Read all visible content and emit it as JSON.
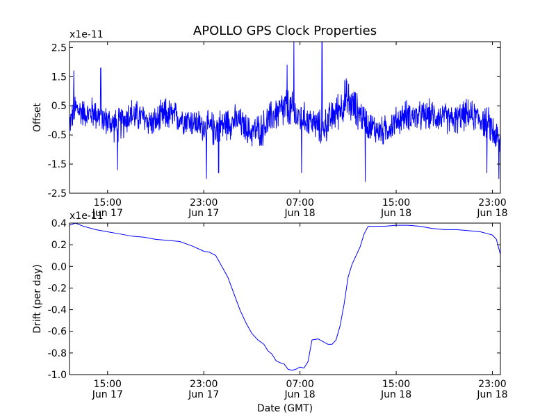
{
  "figure": {
    "title": "APOLLO GPS Clock Properties",
    "line_color": "#0000ff"
  },
  "chart_data": [
    {
      "type": "line",
      "name": "offset",
      "title": "APOLLO GPS Clock Properties",
      "ylabel": "Offset",
      "xlabel": "",
      "y_multiplier": "x1e-11",
      "xlim": [
        "2013-06-17 11:50",
        "2013-06-18 23:40"
      ],
      "ylim": [
        -2.5,
        2.7
      ],
      "y_ticks": [
        2.5,
        1.5,
        0.5,
        -0.5,
        -1.5,
        -2.5
      ],
      "y_tick_labels": [
        "2.5",
        "1.5",
        "0.5",
        "-0.5",
        "-1.5",
        "-2.5"
      ],
      "x_ticks": [
        "2013-06-17 15:00",
        "2013-06-17 23:00",
        "2013-06-18 07:00",
        "2013-06-18 15:00",
        "2013-06-18 23:00"
      ],
      "x_tick_labels": [
        [
          "15:00",
          "Jun 17"
        ],
        [
          "23:00",
          "Jun 17"
        ],
        [
          "07:00",
          "Jun 18"
        ],
        [
          "15:00",
          "Jun 18"
        ],
        [
          "23:00",
          "Jun 18"
        ]
      ],
      "grid": false,
      "envelope": {
        "hours": [
          0,
          0.5,
          1,
          1.5,
          2,
          3,
          4,
          5,
          6,
          7,
          8,
          9,
          10,
          11,
          12,
          13,
          14,
          15,
          16,
          17,
          18,
          18.5,
          19,
          20,
          21,
          22,
          23,
          24,
          25,
          26,
          27,
          28,
          29,
          30,
          31,
          32,
          33,
          34,
          35,
          35.83
        ],
        "center": [
          -0.1,
          0.4,
          0.3,
          0.2,
          0.3,
          0.0,
          -0.2,
          0.2,
          0.1,
          -0.1,
          0.2,
          0.1,
          0.0,
          -0.2,
          -0.3,
          -0.1,
          0.0,
          -0.4,
          -0.3,
          0.2,
          0.4,
          0.3,
          0.1,
          0.0,
          -0.3,
          0.2,
          0.7,
          0.3,
          -0.2,
          -0.4,
          -0.1,
          0.2,
          0.1,
          0.2,
          0.1,
          0.0,
          0.2,
          0.1,
          -0.2,
          -0.8
        ],
        "amplitude": [
          0.5,
          0.7,
          0.6,
          0.5,
          0.7,
          0.6,
          0.7,
          0.7,
          0.6,
          0.6,
          0.7,
          0.6,
          0.6,
          0.6,
          0.7,
          0.7,
          0.6,
          0.6,
          0.7,
          0.7,
          0.9,
          0.8,
          0.7,
          0.6,
          0.7,
          0.7,
          0.9,
          0.7,
          0.6,
          0.6,
          0.6,
          0.6,
          0.6,
          0.6,
          0.6,
          0.6,
          0.6,
          0.6,
          0.7,
          0.7
        ]
      },
      "spikes": [
        {
          "hour": 0.35,
          "value": 1.7
        },
        {
          "hour": 2.6,
          "value": 1.8
        },
        {
          "hour": 4.0,
          "value": -1.7
        },
        {
          "hour": 11.4,
          "value": -2.0
        },
        {
          "hour": 12.4,
          "value": -1.8
        },
        {
          "hour": 18.65,
          "value": 2.7
        },
        {
          "hour": 18.1,
          "value": 1.9
        },
        {
          "hour": 19.3,
          "value": -1.8
        },
        {
          "hour": 21.0,
          "value": 2.7
        },
        {
          "hour": 24.6,
          "value": -2.1
        },
        {
          "hour": 34.7,
          "value": -1.8
        },
        {
          "hour": 35.7,
          "value": -2.0
        }
      ]
    },
    {
      "type": "line",
      "name": "drift",
      "title": "",
      "ylabel": "Drift (per day)",
      "xlabel": "Date (GMT)",
      "y_multiplier": "x1e-11",
      "xlim": [
        "2013-06-17 11:50",
        "2013-06-18 23:40"
      ],
      "ylim": [
        -1.0,
        0.4
      ],
      "y_ticks": [
        0.4,
        0.2,
        0.0,
        -0.2,
        -0.4,
        -0.6,
        -0.8,
        -1.0
      ],
      "y_tick_labels": [
        "0.4",
        "0.2",
        "0.0",
        "-0.2",
        "-0.4",
        "-0.6",
        "-0.8",
        "-1.0"
      ],
      "x_ticks": [
        "2013-06-17 15:00",
        "2013-06-17 23:00",
        "2013-06-18 07:00",
        "2013-06-18 15:00",
        "2013-06-18 23:00"
      ],
      "x_tick_labels": [
        [
          "15:00",
          "Jun 17"
        ],
        [
          "23:00",
          "Jun 17"
        ],
        [
          "07:00",
          "Jun 18"
        ],
        [
          "15:00",
          "Jun 18"
        ],
        [
          "23:00",
          "Jun 18"
        ]
      ],
      "grid": false,
      "x": [
        "2013-06-17 11:50",
        "2013-06-17 12:20",
        "2013-06-17 13:00",
        "2013-06-17 14:00",
        "2013-06-17 15:00",
        "2013-06-17 16:00",
        "2013-06-17 17:00",
        "2013-06-17 18:00",
        "2013-06-17 19:00",
        "2013-06-17 20:00",
        "2013-06-17 21:00",
        "2013-06-17 22:00",
        "2013-06-17 23:00",
        "2013-06-17 23:30",
        "2013-06-18 00:00",
        "2013-06-18 00:30",
        "2013-06-18 01:00",
        "2013-06-18 01:30",
        "2013-06-18 02:00",
        "2013-06-18 02:30",
        "2013-06-18 03:00",
        "2013-06-18 03:30",
        "2013-06-18 04:00",
        "2013-06-18 04:20",
        "2013-06-18 04:40",
        "2013-06-18 05:00",
        "2013-06-18 05:20",
        "2013-06-18 05:40",
        "2013-06-18 06:00",
        "2013-06-18 06:20",
        "2013-06-18 06:40",
        "2013-06-18 07:00",
        "2013-06-18 07:20",
        "2013-06-18 07:40",
        "2013-06-18 08:00",
        "2013-06-18 08:30",
        "2013-06-18 09:00",
        "2013-06-18 09:20",
        "2013-06-18 09:40",
        "2013-06-18 10:00",
        "2013-06-18 10:20",
        "2013-06-18 10:40",
        "2013-06-18 11:00",
        "2013-06-18 11:20",
        "2013-06-18 11:40",
        "2013-06-18 12:00",
        "2013-06-18 12:20",
        "2013-06-18 12:40",
        "2013-06-18 13:00",
        "2013-06-18 14:00",
        "2013-06-18 15:00",
        "2013-06-18 16:00",
        "2013-06-18 17:00",
        "2013-06-18 18:00",
        "2013-06-18 19:00",
        "2013-06-18 20:00",
        "2013-06-18 21:00",
        "2013-06-18 22:00",
        "2013-06-18 22:40",
        "2013-06-18 23:00",
        "2013-06-18 23:20",
        "2013-06-18 23:40"
      ],
      "values": [
        0.38,
        0.4,
        0.37,
        0.34,
        0.32,
        0.3,
        0.28,
        0.27,
        0.25,
        0.24,
        0.23,
        0.19,
        0.14,
        0.13,
        0.1,
        0.0,
        -0.1,
        -0.25,
        -0.4,
        -0.52,
        -0.62,
        -0.68,
        -0.72,
        -0.78,
        -0.81,
        -0.87,
        -0.89,
        -0.9,
        -0.95,
        -0.96,
        -0.95,
        -0.93,
        -0.94,
        -0.88,
        -0.68,
        -0.67,
        -0.7,
        -0.72,
        -0.72,
        -0.68,
        -0.55,
        -0.35,
        -0.1,
        0.02,
        0.1,
        0.18,
        0.3,
        0.37,
        0.37,
        0.37,
        0.38,
        0.38,
        0.37,
        0.35,
        0.34,
        0.34,
        0.33,
        0.32,
        0.3,
        0.29,
        0.25,
        0.11
      ]
    }
  ]
}
